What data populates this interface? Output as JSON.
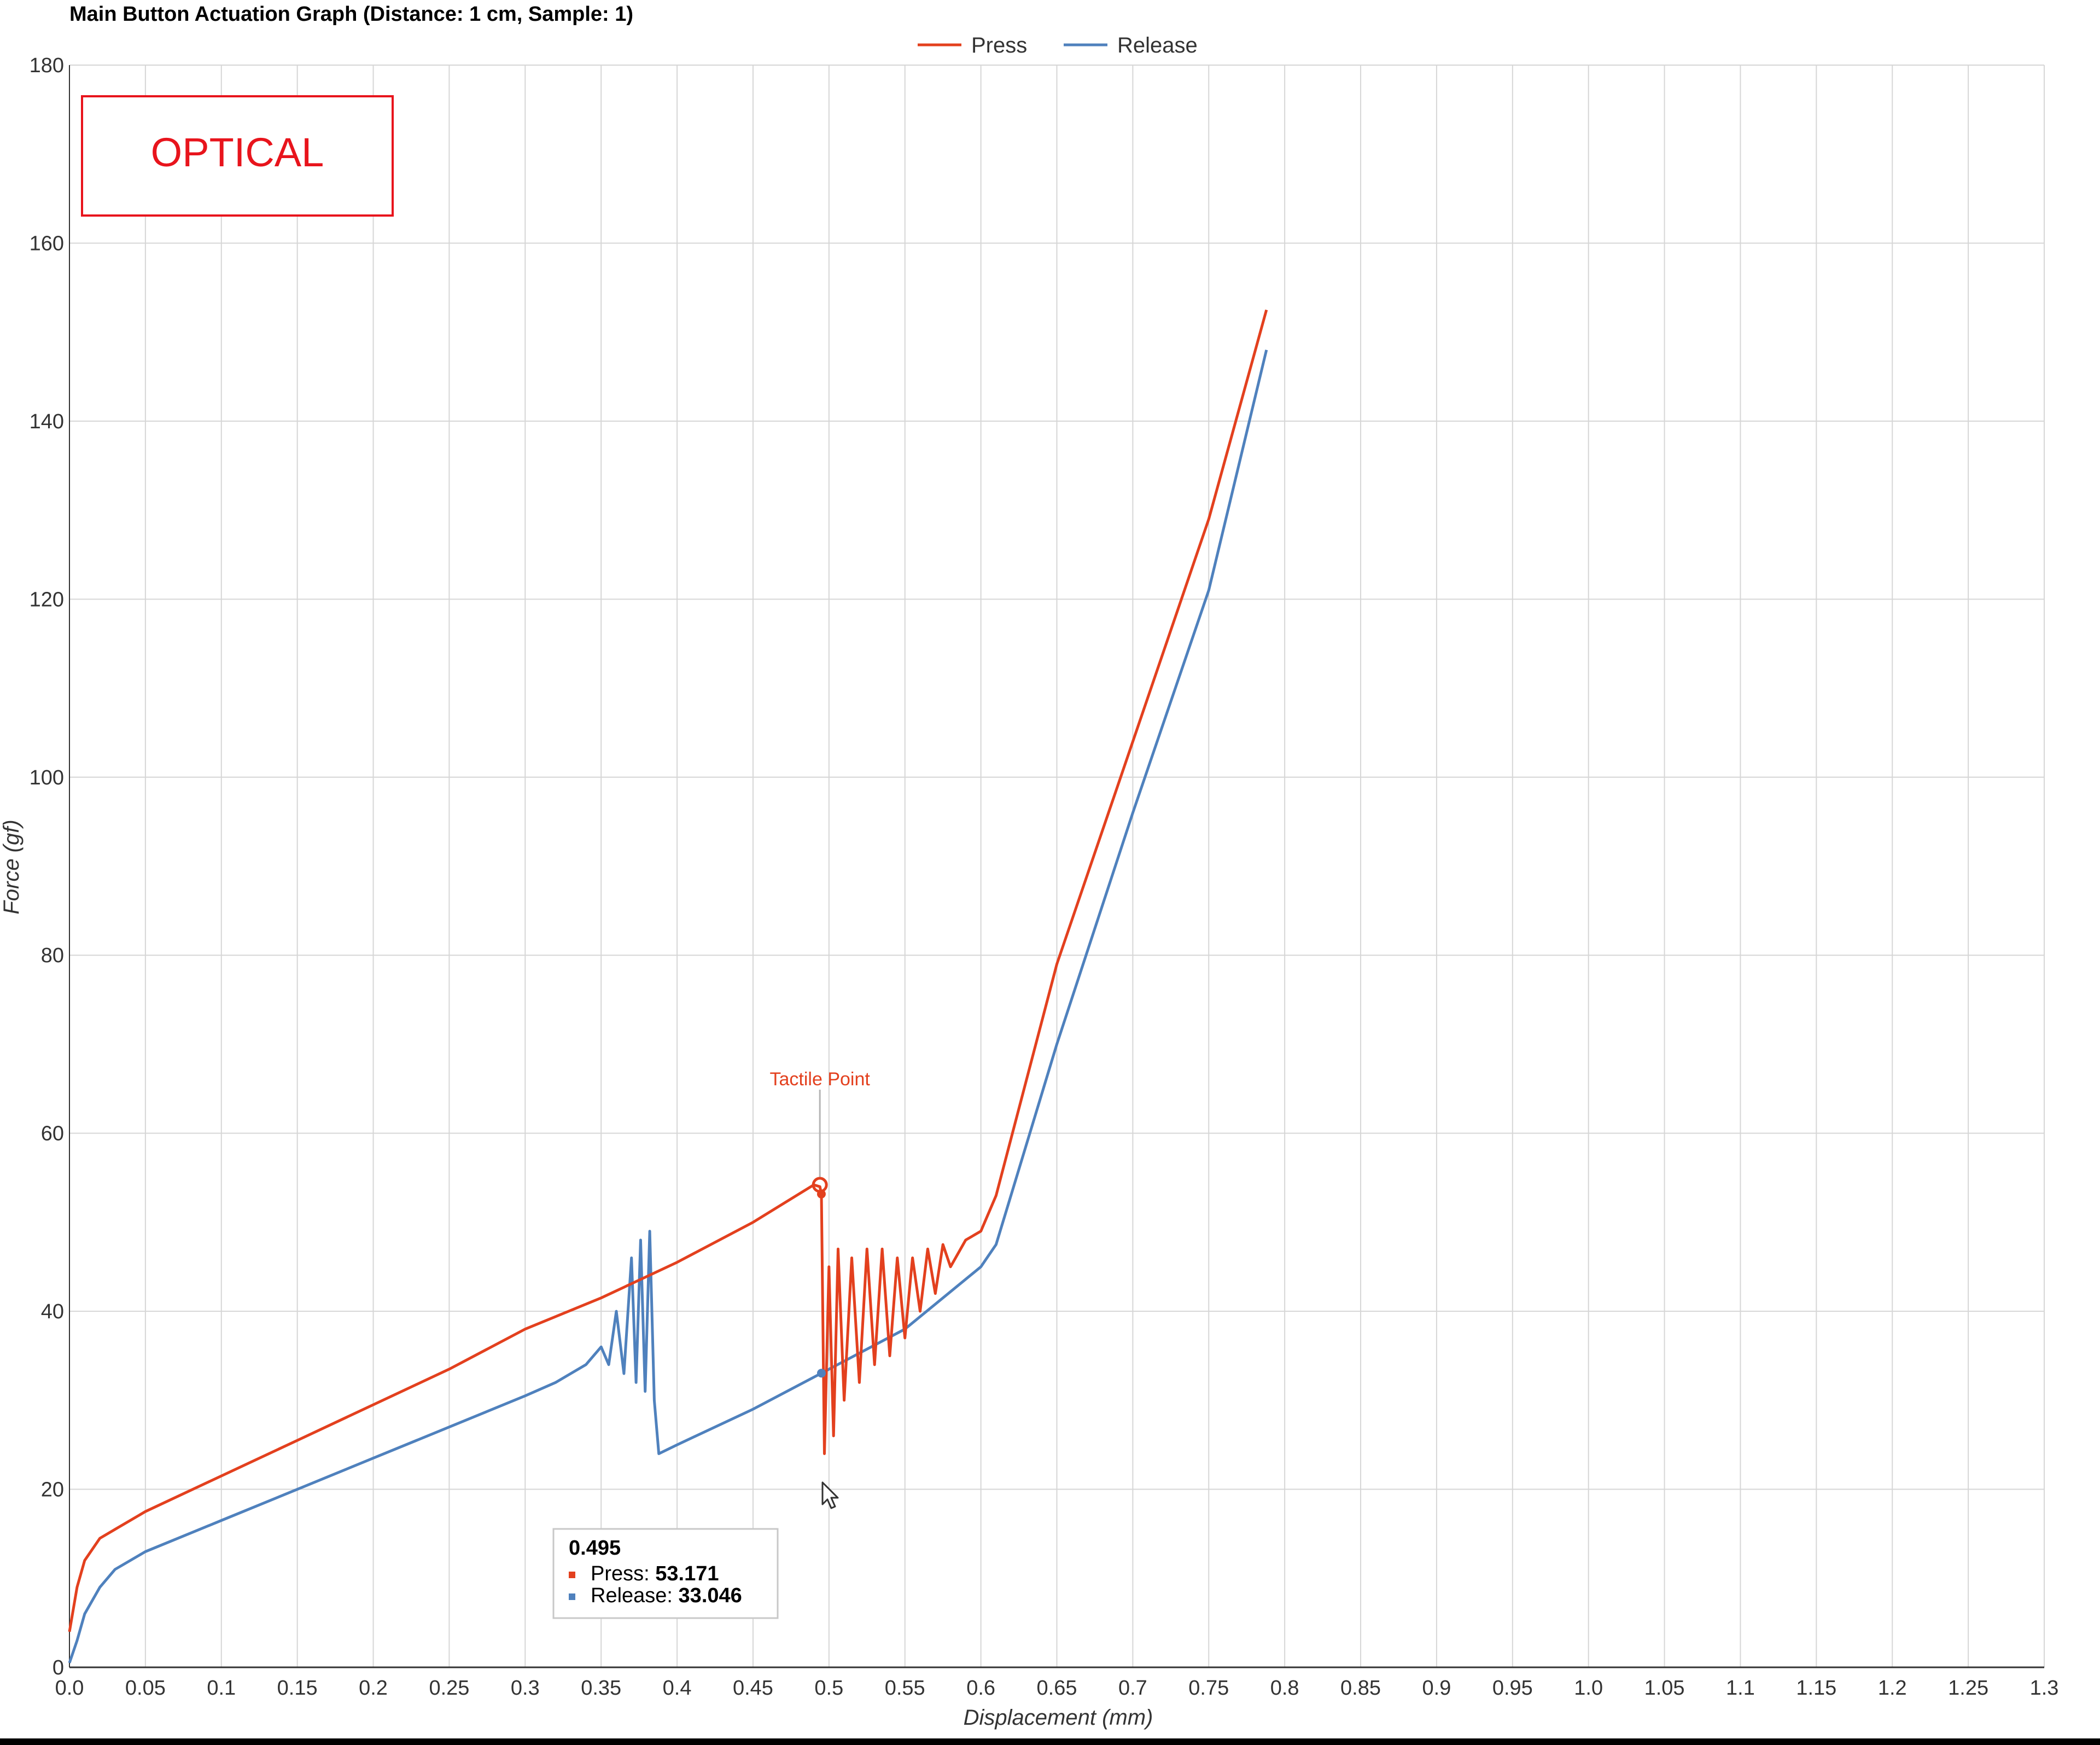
{
  "chart_data": {
    "type": "line",
    "title": "Main Button Actuation Graph (Distance: 1 cm, Sample: 1)",
    "xlabel": "Displacement (mm)",
    "ylabel": "Force (gf)",
    "xlim": [
      0,
      1.3
    ],
    "ylim": [
      0,
      180
    ],
    "xticks": [
      "0.0",
      "0.05",
      "0.1",
      "0.15",
      "0.2",
      "0.25",
      "0.3",
      "0.35",
      "0.4",
      "0.45",
      "0.5",
      "0.55",
      "0.6",
      "0.65",
      "0.7",
      "0.75",
      "0.8",
      "0.85",
      "0.9",
      "0.95",
      "1.0",
      "1.05",
      "1.1",
      "1.15",
      "1.2",
      "1.25",
      "1.3"
    ],
    "yticks": [
      "0",
      "20",
      "40",
      "60",
      "80",
      "100",
      "120",
      "140",
      "160",
      "180"
    ],
    "grid": true,
    "legend_position": "top-center",
    "series": [
      {
        "name": "Press",
        "color": "#e3401e",
        "x": [
          0.0,
          0.005,
          0.01,
          0.02,
          0.03,
          0.05,
          0.1,
          0.15,
          0.2,
          0.25,
          0.3,
          0.35,
          0.4,
          0.45,
          0.49,
          0.494,
          0.495,
          0.497,
          0.5,
          0.503,
          0.506,
          0.51,
          0.515,
          0.52,
          0.525,
          0.53,
          0.535,
          0.54,
          0.545,
          0.55,
          0.555,
          0.56,
          0.565,
          0.57,
          0.575,
          0.58,
          0.59,
          0.6,
          0.61,
          0.65,
          0.7,
          0.75,
          0.788
        ],
        "y": [
          4,
          9,
          12,
          14.5,
          15.5,
          17.5,
          21.5,
          25.5,
          29.5,
          33.5,
          38,
          41.5,
          45.5,
          50,
          54.2,
          54,
          53.171,
          24,
          45,
          26,
          47,
          30,
          46,
          32,
          47,
          34,
          47,
          35,
          46,
          37,
          46,
          40,
          47,
          42,
          47.5,
          45,
          48,
          49,
          53,
          79,
          104,
          129,
          152.5
        ]
      },
      {
        "name": "Release",
        "color": "#4f81bd",
        "x": [
          0.0,
          0.005,
          0.01,
          0.02,
          0.03,
          0.05,
          0.1,
          0.15,
          0.2,
          0.25,
          0.3,
          0.32,
          0.33,
          0.34,
          0.35,
          0.355,
          0.36,
          0.365,
          0.37,
          0.373,
          0.376,
          0.379,
          0.382,
          0.385,
          0.388,
          0.4,
          0.45,
          0.495,
          0.55,
          0.6,
          0.61,
          0.65,
          0.7,
          0.75,
          0.788
        ],
        "y": [
          0.5,
          3,
          6,
          9,
          11,
          13,
          16.5,
          20,
          23.5,
          27,
          30.5,
          32,
          33,
          34,
          36,
          34,
          40,
          33,
          46,
          32,
          48,
          31,
          49,
          30,
          24,
          25,
          29,
          33.046,
          38,
          45,
          47.5,
          70,
          96,
          121,
          148
        ]
      }
    ],
    "annotations": [
      {
        "text": "Tactile Point",
        "x": 0.494,
        "y": 54.2
      }
    ],
    "tooltip": {
      "x_label": "0.495",
      "rows": [
        {
          "series": "Press",
          "label": "Press: ",
          "value": "53.171"
        },
        {
          "series": "Release",
          "label": "Release: ",
          "value": "33.046"
        }
      ]
    },
    "overlay_label": {
      "text": "OPTICAL",
      "color": "#e8141c"
    }
  }
}
